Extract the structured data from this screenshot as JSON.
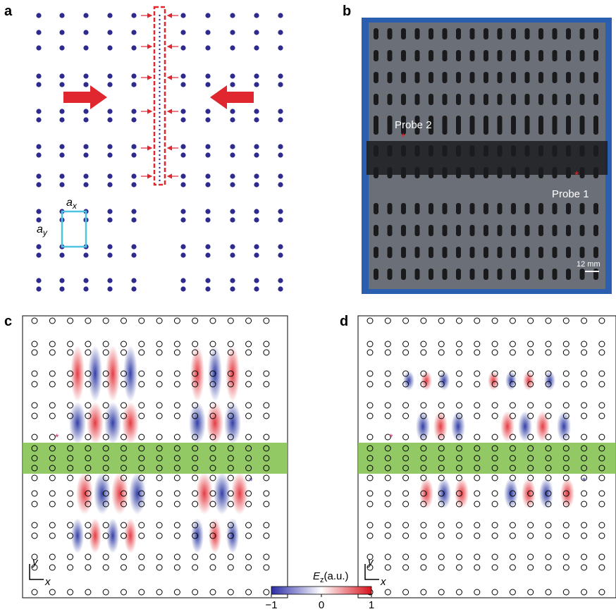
{
  "panels": {
    "a": {
      "label": "a",
      "ax": {
        "symbol": "a",
        "sub": "x"
      },
      "ay": {
        "symbol": "a",
        "sub": "y"
      }
    },
    "b": {
      "label": "b",
      "probe2": "Probe 2",
      "probe1": "Probe 1",
      "scale_bar": "12 mm"
    },
    "c": {
      "label": "c",
      "axis_y": "y",
      "axis_x": "x"
    },
    "d": {
      "label": "d",
      "axis_y": "y",
      "axis_x": "x"
    }
  },
  "colorbar": {
    "label": {
      "symbol": "E",
      "sub": "z",
      "unit": "(a.u.)"
    },
    "lim": [
      -1,
      1
    ],
    "ticks": [
      {
        "value": -1,
        "label": "−1"
      },
      0,
      1
    ]
  }
}
